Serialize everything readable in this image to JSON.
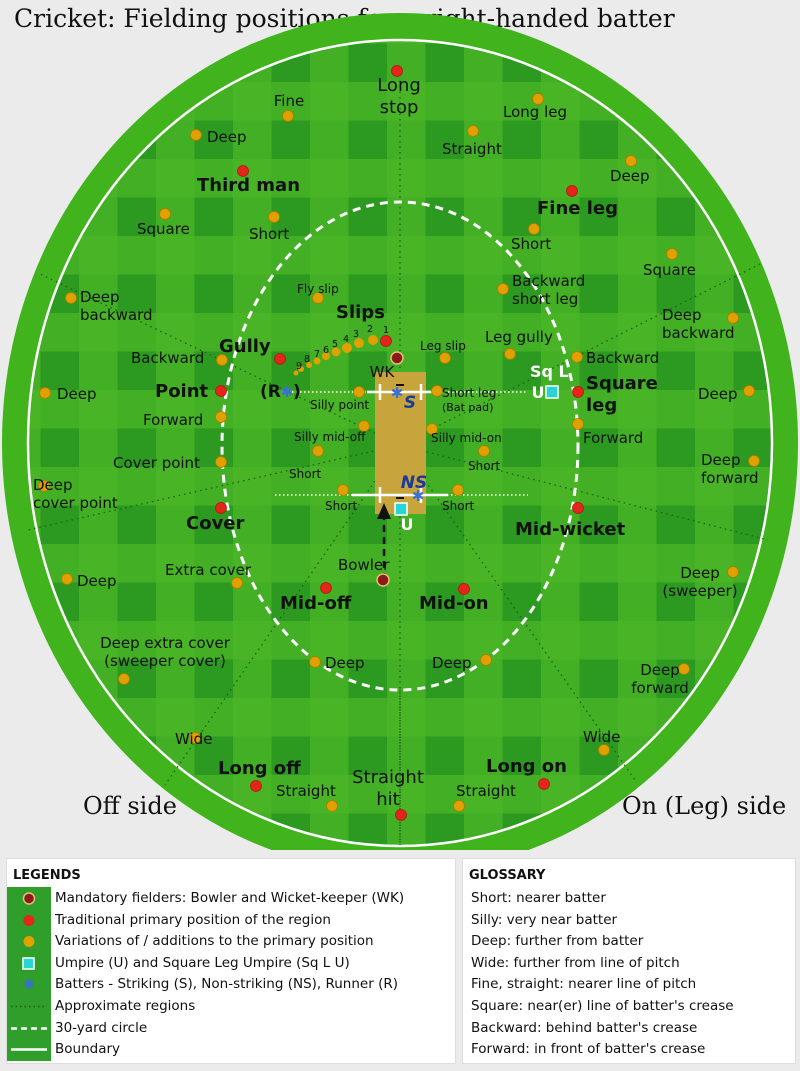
{
  "title": "Cricket: Fielding positions for a right-handed batter",
  "sides": {
    "off": "Off side",
    "on": "On (Leg) side"
  },
  "colors": {
    "boundary_green": "#3fb31f",
    "field_dark": "#2c9a20",
    "field_light": "#52be2a",
    "primary": "#e3251a",
    "variation": "#e0a000",
    "mandatory": "#8b1a1a",
    "pitch": "#c8a43c",
    "umpire": "#2ad4d4",
    "batter": "#3a6fd8"
  },
  "markers": {
    "wk": "WK",
    "bowler": "Bowler",
    "striker": "S",
    "non_striker": "NS",
    "runner": "R",
    "umpire": "U",
    "square_leg_umpire": "Sq L U"
  },
  "slip_numbers": [
    "1",
    "2",
    "3",
    "4",
    "5",
    "6",
    "7",
    "8",
    "9"
  ],
  "positions": {
    "long_stop": "Long stop",
    "fine": "Fine",
    "deep_fine": "Deep",
    "long_leg": "Long leg",
    "straight_long_leg": "Straight",
    "deep_long_leg": "Deep",
    "third_man": "Third man",
    "fine_leg": "Fine leg",
    "square_tm": "Square",
    "short_tm": "Short",
    "short_fl": "Short",
    "square_fl": "Square",
    "fly_slip": "Fly slip",
    "backward_short_leg": "Backward short leg",
    "deep_backward_off": "Deep backward",
    "deep_backward_leg": "Deep backward",
    "slips": "Slips",
    "gully": "Gully",
    "leg_slip": "Leg slip",
    "leg_gully": "Leg gully",
    "backward_point": "Backward",
    "backward_sq_leg": "Backward",
    "point": "Point",
    "square_leg": "Square leg",
    "deep_point": "Deep",
    "deep_sq_leg": "Deep",
    "silly_point": "Silly point",
    "short_leg": "Short leg",
    "bat_pad": "(Bat pad)",
    "forward_point": "Forward",
    "forward_sq_leg": "Forward",
    "silly_mid_off": "Silly mid-off",
    "silly_mid_on": "Silly mid-on",
    "cover_point": "Cover point",
    "deep_forward": "Deep forward",
    "short_off_1": "Short",
    "short_on_1": "Short",
    "deep_cover_point": "Deep cover point",
    "short_off_2": "Short",
    "short_on_2": "Short",
    "cover": "Cover",
    "mid_wicket": "Mid-wicket",
    "extra_cover": "Extra cover",
    "deep_extra_cover_off": "Deep",
    "deep_sweeper": "Deep (sweeper)",
    "mid_off": "Mid-off",
    "mid_on": "Mid-on",
    "deep_extra_cover": "Deep extra cover (sweeper cover)",
    "deep_mid_off": "Deep",
    "deep_mid_on": "Deep",
    "deep_forward_on": "Deep forward",
    "wide_off": "Wide",
    "wide_on": "Wide",
    "long_off": "Long off",
    "long_on": "Long on",
    "straight_off": "Straight",
    "straight_on": "Straight",
    "straight_hit": "Straight hit"
  },
  "legend": {
    "heading": "LEGENDS",
    "items": [
      "Mandatory fielders: Bowler and Wicket-keeper (WK)",
      "Traditional primary position of the region",
      "Variations of / additions to the primary position",
      "Umpire (U) and Square Leg Umpire (Sq L U)",
      "Batters - Striking (S), Non-striking (NS), Runner (R)",
      "Approximate regions",
      "30-yard circle",
      "Boundary"
    ]
  },
  "glossary": {
    "heading": "GLOSSARY",
    "items": [
      "Short: nearer batter",
      "Silly: very near batter",
      "Deep: further from batter",
      "Wide: further from line of pitch",
      "Fine, straight: nearer line of pitch",
      "Square: near(er) line of batter's crease",
      "Backward: behind batter's crease",
      "Forward: in front of batter's crease"
    ]
  }
}
